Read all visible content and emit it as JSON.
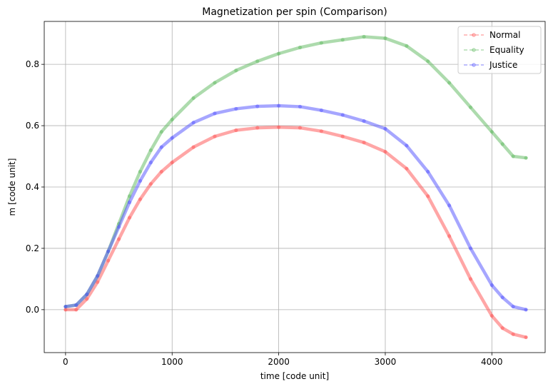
{
  "chart_data": {
    "type": "line",
    "title": "Magnetization per spin (Comparison)",
    "xlabel": "time [code unit]",
    "ylabel": "m [code unit]",
    "xlim": [
      -200,
      4500
    ],
    "ylim": [
      -0.14,
      0.94
    ],
    "x_ticks": [
      0,
      1000,
      2000,
      3000,
      4000
    ],
    "y_ticks": [
      0.0,
      0.2,
      0.4,
      0.6,
      0.8
    ],
    "grid": true,
    "legend_position": "top-right",
    "series": [
      {
        "name": "Normal",
        "color": "#ff4d4d",
        "x": [
          0,
          100,
          200,
          300,
          400,
          500,
          600,
          700,
          800,
          900,
          1000,
          1200,
          1400,
          1600,
          1800,
          2000,
          2200,
          2400,
          2600,
          2800,
          3000,
          3200,
          3400,
          3600,
          3800,
          4000,
          4100,
          4200,
          4320
        ],
        "values": [
          0.0,
          0.0,
          0.035,
          0.09,
          0.16,
          0.23,
          0.3,
          0.36,
          0.41,
          0.45,
          0.48,
          0.53,
          0.565,
          0.585,
          0.593,
          0.595,
          0.593,
          0.582,
          0.565,
          0.545,
          0.515,
          0.46,
          0.37,
          0.24,
          0.1,
          -0.02,
          -0.06,
          -0.08,
          -0.09
        ]
      },
      {
        "name": "Equality",
        "color": "#5cb85c",
        "x": [
          0,
          100,
          200,
          300,
          400,
          500,
          600,
          700,
          800,
          900,
          1000,
          1200,
          1400,
          1600,
          1800,
          2000,
          2200,
          2400,
          2600,
          2800,
          3000,
          3200,
          3400,
          3600,
          3800,
          4000,
          4100,
          4200,
          4320
        ],
        "values": [
          0.01,
          0.015,
          0.05,
          0.11,
          0.19,
          0.28,
          0.37,
          0.45,
          0.52,
          0.58,
          0.62,
          0.69,
          0.74,
          0.78,
          0.81,
          0.835,
          0.855,
          0.87,
          0.88,
          0.89,
          0.885,
          0.86,
          0.81,
          0.74,
          0.66,
          0.58,
          0.54,
          0.5,
          0.495
        ]
      },
      {
        "name": "Justice",
        "color": "#4d4dff",
        "x": [
          0,
          100,
          200,
          300,
          400,
          500,
          600,
          700,
          800,
          900,
          1000,
          1200,
          1400,
          1600,
          1800,
          2000,
          2200,
          2400,
          2600,
          2800,
          3000,
          3200,
          3400,
          3600,
          3800,
          4000,
          4100,
          4200,
          4320
        ],
        "values": [
          0.01,
          0.015,
          0.05,
          0.11,
          0.19,
          0.27,
          0.35,
          0.42,
          0.48,
          0.53,
          0.56,
          0.61,
          0.64,
          0.655,
          0.663,
          0.665,
          0.662,
          0.65,
          0.635,
          0.615,
          0.59,
          0.535,
          0.45,
          0.34,
          0.2,
          0.08,
          0.04,
          0.01,
          0.0
        ]
      }
    ]
  }
}
